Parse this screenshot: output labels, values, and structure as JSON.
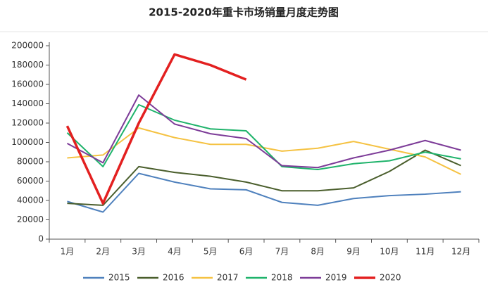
{
  "chart_data": {
    "type": "line",
    "title": "2015-2020年重卡市场销量月度走势图",
    "categories": [
      "1月",
      "2月",
      "3月",
      "4月",
      "5月",
      "6月",
      "7月",
      "8月",
      "9月",
      "10月",
      "11月",
      "12月"
    ],
    "ylim": [
      0,
      200000
    ],
    "yticks": [
      0,
      20000,
      40000,
      60000,
      80000,
      100000,
      120000,
      140000,
      160000,
      180000,
      200000
    ],
    "grid": false,
    "legend": "bottom",
    "series": [
      {
        "name": "2015",
        "color": "#4f81bd",
        "values": [
          39000,
          28000,
          68000,
          59000,
          52000,
          51000,
          38000,
          35000,
          42000,
          45000,
          46500,
          49000
        ]
      },
      {
        "name": "2016",
        "color": "#4a5e2c",
        "values": [
          37000,
          35000,
          75000,
          69000,
          65000,
          59000,
          50000,
          50000,
          53000,
          70000,
          92000,
          76000
        ]
      },
      {
        "name": "2017",
        "color": "#f5c242",
        "values": [
          84000,
          87000,
          115000,
          105000,
          98000,
          98000,
          91000,
          94000,
          101000,
          93000,
          85000,
          67000
        ]
      },
      {
        "name": "2018",
        "color": "#1fb36b",
        "values": [
          110000,
          75000,
          139000,
          123000,
          114000,
          112000,
          75000,
          72000,
          78000,
          81000,
          90000,
          83000
        ]
      },
      {
        "name": "2019",
        "color": "#7d3c98",
        "values": [
          99000,
          79000,
          149000,
          119000,
          109000,
          104000,
          76000,
          74000,
          84000,
          92000,
          102000,
          92000
        ]
      },
      {
        "name": "2020",
        "color": "#e32020",
        "values": [
          117000,
          37000,
          120000,
          191000,
          180000,
          165000,
          null,
          null,
          null,
          null,
          null,
          null
        ]
      }
    ]
  }
}
